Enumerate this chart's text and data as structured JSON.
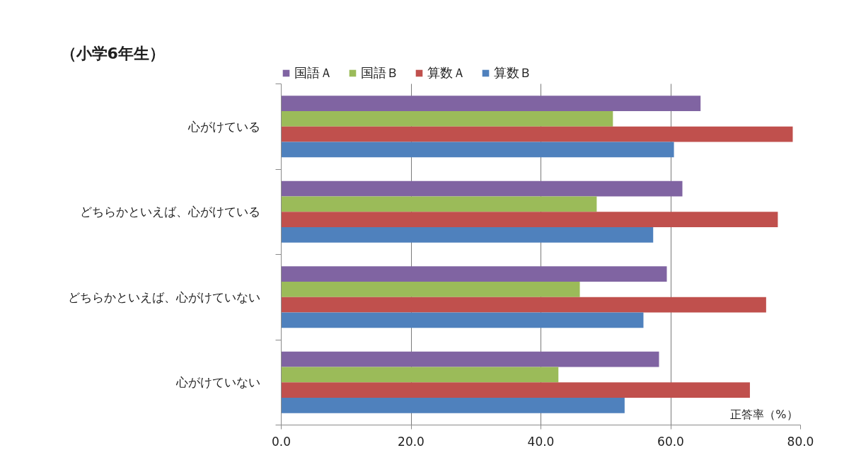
{
  "chart_data": {
    "type": "bar",
    "orientation": "horizontal",
    "title": "（小学6年生）",
    "xlabel": "正答率（%）",
    "categories": [
      "心がけている",
      "どちらかといえば、心がけている",
      "どちらかといえば、心がけていない",
      "心がけていない"
    ],
    "series": [
      {
        "name": "国語Ａ",
        "color": "#8064a2",
        "values": [
          64.6,
          61.8,
          59.4,
          58.2
        ]
      },
      {
        "name": "国語Ｂ",
        "color": "#9bbb59",
        "values": [
          51.1,
          48.6,
          46.0,
          42.7
        ]
      },
      {
        "name": "算数Ａ",
        "color": "#c0504d",
        "values": [
          78.8,
          76.5,
          74.7,
          72.2
        ]
      },
      {
        "name": "算数Ｂ",
        "color": "#4f81bd",
        "values": [
          60.5,
          57.3,
          55.8,
          52.9
        ]
      }
    ],
    "xlim": [
      0,
      80
    ],
    "xticks": [
      {
        "value": 0,
        "label": "0.0"
      },
      {
        "value": 20,
        "label": "20.0"
      },
      {
        "value": 40,
        "label": "40.0"
      },
      {
        "value": 60,
        "label": "60.0"
      },
      {
        "value": 80,
        "label": "80.0"
      }
    ],
    "grid": "x",
    "legend": "top"
  }
}
